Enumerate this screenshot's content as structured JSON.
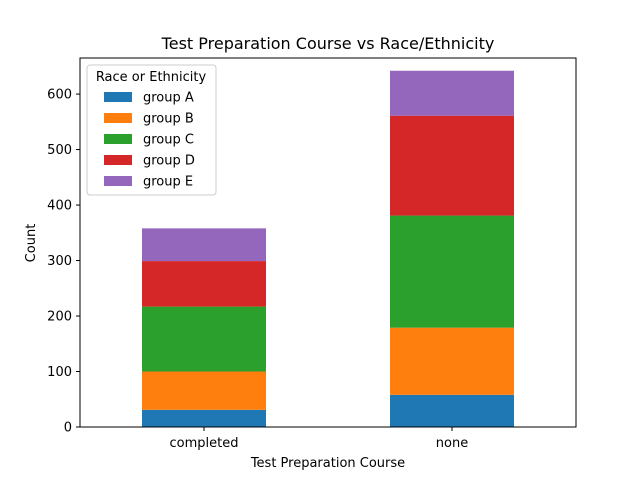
{
  "chart_data": {
    "type": "bar",
    "stacked": true,
    "title": "Test Preparation Course vs Race/Ethnicity",
    "xlabel": "Test Preparation Course",
    "ylabel": "Count",
    "categories": [
      "completed",
      "none"
    ],
    "ylim": [
      0,
      665
    ],
    "yticks": [
      0,
      100,
      200,
      300,
      400,
      500,
      600
    ],
    "grid": false,
    "legend": {
      "title": "Race or Ethnicity",
      "placement": "upper-left"
    },
    "series": [
      {
        "name": "group A",
        "color": "#1f77b4",
        "values": [
          31,
          58
        ]
      },
      {
        "name": "group B",
        "color": "#ff7f0e",
        "values": [
          69,
          121
        ]
      },
      {
        "name": "group C",
        "color": "#2ca02c",
        "values": [
          117,
          202
        ]
      },
      {
        "name": "group D",
        "color": "#d62728",
        "values": [
          82,
          180
        ]
      },
      {
        "name": "group E",
        "color": "#9467bd",
        "values": [
          59,
          81
        ]
      }
    ]
  }
}
